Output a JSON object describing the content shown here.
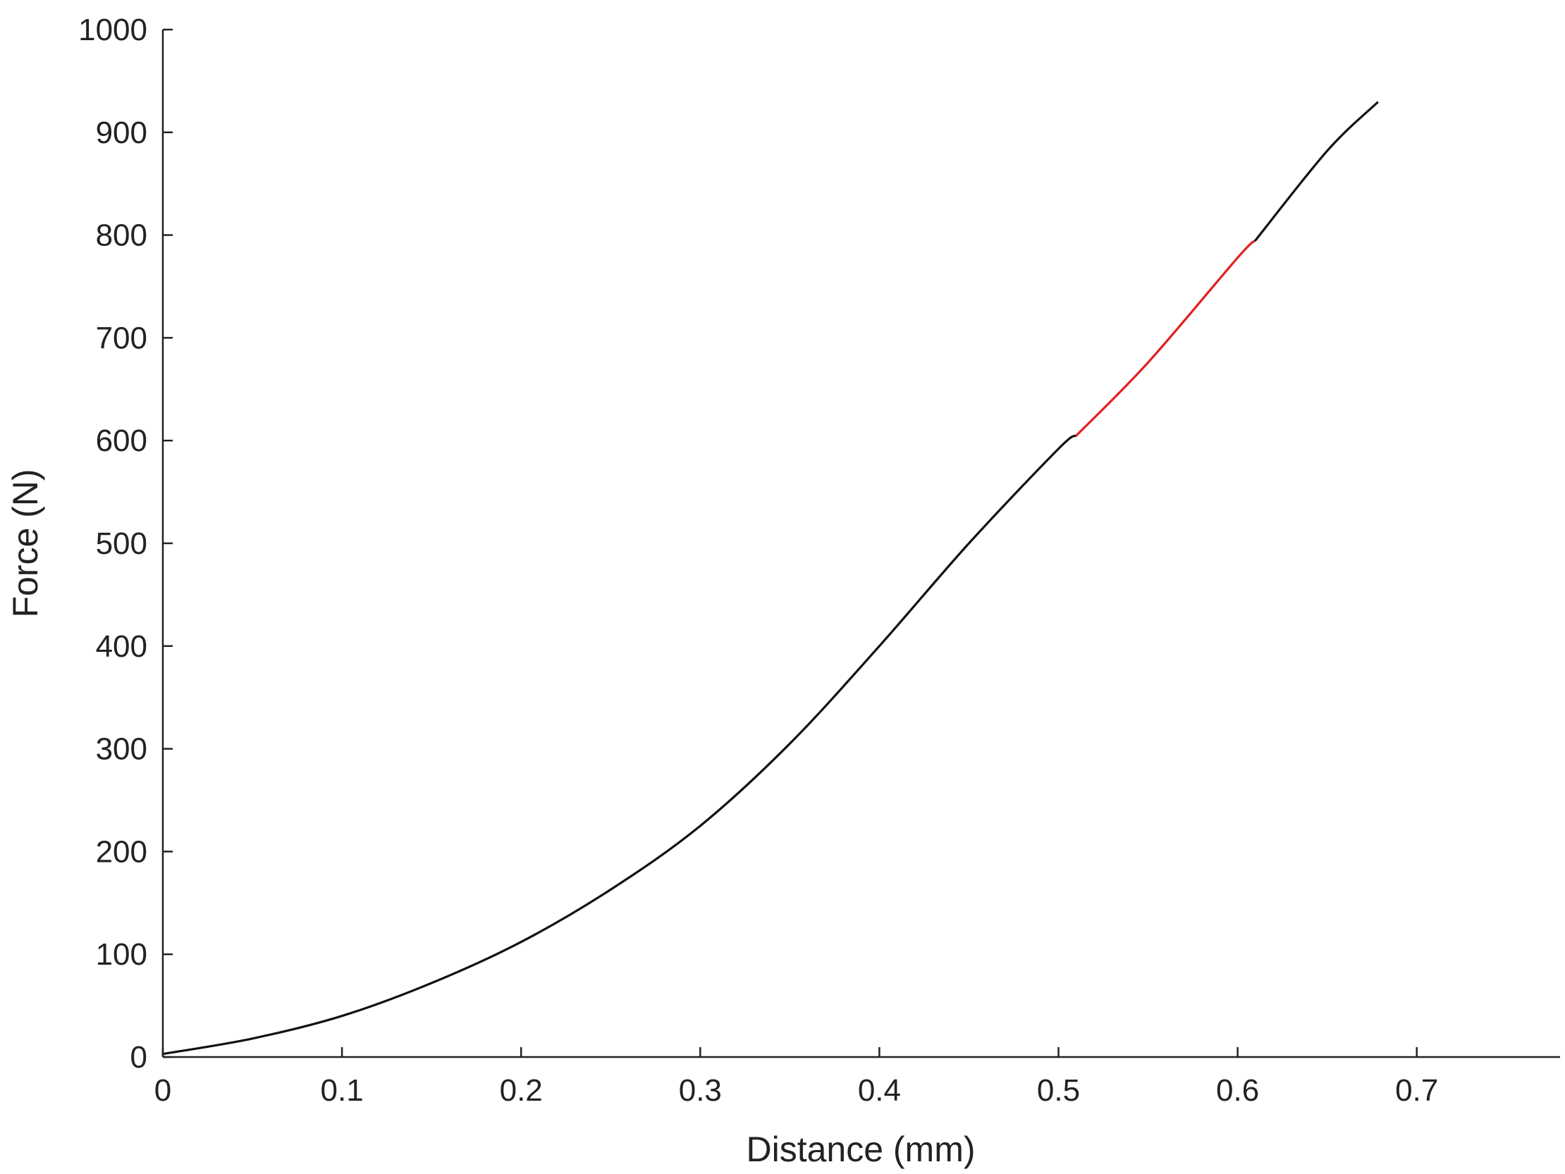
{
  "chart_data": {
    "type": "line",
    "title": "",
    "xlabel": "Distance (mm)",
    "ylabel": "Force (N)",
    "xlim": [
      0,
      0.78
    ],
    "ylim": [
      0,
      1000
    ],
    "x_ticks": [
      "0",
      "0.1",
      "0.2",
      "0.3",
      "0.4",
      "0.5",
      "0.6",
      "0.7"
    ],
    "y_ticks": [
      "0",
      "100",
      "200",
      "300",
      "400",
      "500",
      "600",
      "700",
      "800",
      "900",
      "1000"
    ],
    "grid": false,
    "legend": "none",
    "series": [
      {
        "color": "#111111",
        "x": [
          0,
          0.05,
          0.1,
          0.15,
          0.2,
          0.25,
          0.3,
          0.35,
          0.4,
          0.45,
          0.5,
          0.51
        ],
        "y": [
          3,
          18,
          40,
          72,
          112,
          163,
          225,
          305,
          400,
          500,
          592,
          605
        ]
      },
      {
        "color": "#e02020",
        "x": [
          0.51,
          0.55,
          0.6,
          0.61
        ],
        "y": [
          605,
          676,
          778,
          795
        ]
      },
      {
        "color": "#111111",
        "x": [
          0.61,
          0.65,
          0.678
        ],
        "y": [
          795,
          882,
          929
        ]
      }
    ]
  }
}
